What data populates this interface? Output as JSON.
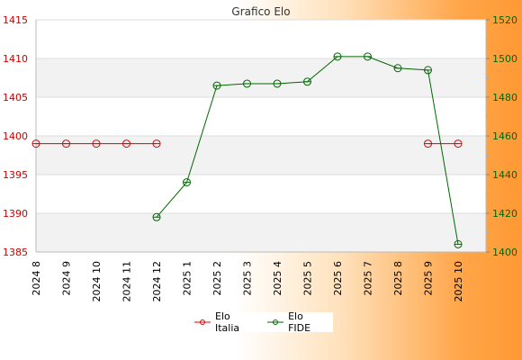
{
  "chart_data": {
    "type": "line",
    "title": "Grafico Elo",
    "categories": [
      "2024 8",
      "2024 9",
      "2024 10",
      "2024 11",
      "2024 12",
      "2025 1",
      "2025 2",
      "2025 3",
      "2025 4",
      "2025 5",
      "2025 6",
      "2025 7",
      "2025 8",
      "2025 9",
      "2025 10"
    ],
    "left_axis": {
      "ylim": [
        1385,
        1415
      ],
      "ticks": [
        1385,
        1390,
        1395,
        1400,
        1405,
        1410,
        1415
      ],
      "color": "#cc0000"
    },
    "right_axis": {
      "ylim": [
        1400,
        1520
      ],
      "ticks": [
        1400,
        1420,
        1440,
        1460,
        1480,
        1500,
        1520
      ],
      "color": "#006600"
    },
    "series": [
      {
        "name": "Elo Italia",
        "axis": "left",
        "color": "#dd0000",
        "values": [
          1399,
          1399,
          1399,
          1399,
          1399,
          null,
          null,
          null,
          null,
          null,
          null,
          null,
          null,
          1399,
          1399
        ]
      },
      {
        "name": "Elo FIDE",
        "axis": "right",
        "color": "#006600",
        "values": [
          null,
          null,
          null,
          null,
          1418,
          1436,
          1486,
          1487,
          1487,
          1488,
          1501,
          1501,
          1495,
          1494,
          1404
        ]
      }
    ],
    "grid": true,
    "legend": "bottom-center"
  }
}
